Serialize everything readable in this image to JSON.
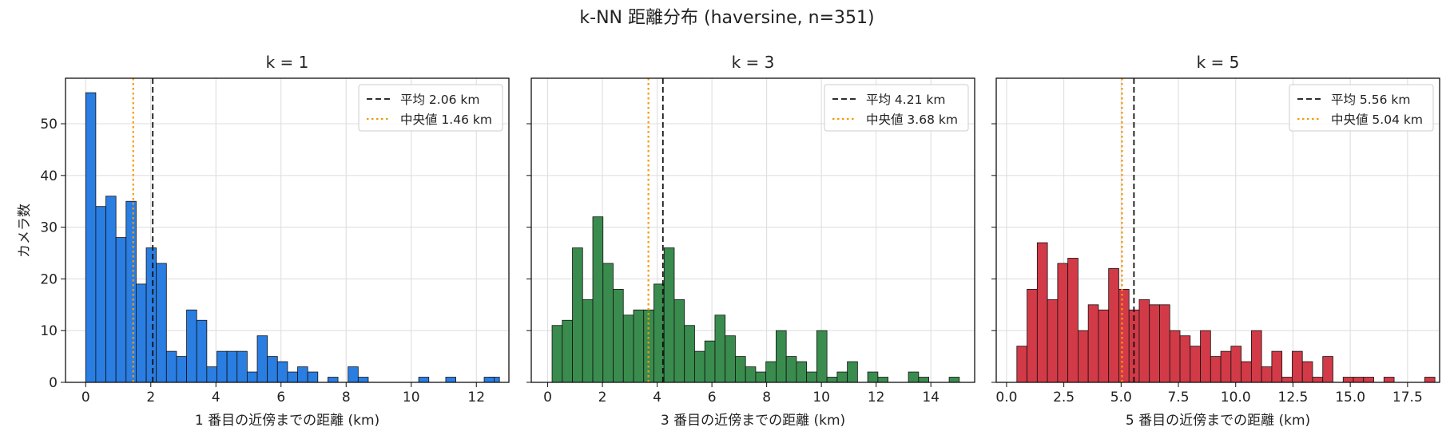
{
  "figure_title": "k-NN 距離分布 (haversine, n=351)",
  "y_label": "カメラ数",
  "chart_data": [
    {
      "type": "bar",
      "title": "k = 1",
      "xlabel": "1 番目の近傍までの距離 (km)",
      "ylabel": "カメラ数",
      "color": "#2a7de1",
      "xlim": [
        -0.62,
        13.0
      ],
      "ylim": [
        0,
        58.8
      ],
      "xticks": [
        0,
        2,
        4,
        6,
        8,
        10,
        12
      ],
      "xtick_labels": [
        "0",
        "2",
        "4",
        "6",
        "8",
        "10",
        "12"
      ],
      "yticks": [
        0,
        10,
        20,
        30,
        40,
        50
      ],
      "ytick_labels": [
        "0",
        "10",
        "20",
        "30",
        "40",
        "50"
      ],
      "bin_start": 0.0,
      "bin_width": 0.31,
      "counts": [
        56,
        34,
        36,
        28,
        35,
        19,
        26,
        23,
        6,
        5,
        14,
        12,
        3,
        6,
        6,
        6,
        2,
        9,
        5,
        4,
        2,
        3,
        2,
        0,
        1,
        0,
        3,
        1,
        0,
        0,
        0,
        0,
        0,
        1,
        0,
        0,
        0,
        0,
        0,
        0,
        1,
        0
      ],
      "extra_bars": [
        {
          "x": 11.06,
          "count": 1
        },
        {
          "x": 12.24,
          "count": 1
        }
      ],
      "mean": 2.06,
      "median": 1.46,
      "legend": {
        "mean_label": "平均 2.06 km",
        "median_label": "中央値 1.46 km",
        "position": "upper right"
      }
    },
    {
      "type": "bar",
      "title": "k = 3",
      "xlabel": "3 番目の近傍までの距離 (km)",
      "ylabel": "",
      "color": "#3a8c4e",
      "xlim": [
        -0.6,
        15.6
      ],
      "ylim": [
        0,
        58.8
      ],
      "xticks": [
        0,
        2,
        4,
        6,
        8,
        10,
        12,
        14
      ],
      "xtick_labels": [
        "0",
        "2",
        "4",
        "6",
        "8",
        "10",
        "12",
        "14"
      ],
      "yticks": [
        0,
        10,
        20,
        30,
        40,
        50
      ],
      "ytick_labels": [],
      "bin_start": 0.16,
      "bin_width": 0.372,
      "counts": [
        11,
        12,
        26,
        16,
        32,
        23,
        18,
        13,
        14,
        14,
        19,
        26,
        16,
        11,
        6,
        8,
        13,
        9,
        5,
        3,
        2,
        4,
        10,
        5,
        4,
        2,
        10,
        1,
        2,
        4,
        0,
        2,
        1,
        0,
        0,
        2,
        1,
        0,
        0,
        1
      ],
      "mean": 4.21,
      "median": 3.68,
      "legend": {
        "mean_label": "平均 4.21 km",
        "median_label": "中央値 3.68 km",
        "position": "upper right"
      }
    },
    {
      "type": "bar",
      "title": "k = 5",
      "xlabel": "5 番目の近傍までの距離 (km)",
      "ylabel": "",
      "color": "#d23a47",
      "xlim": [
        -0.45,
        18.9
      ],
      "ylim": [
        0,
        58.8
      ],
      "xticks": [
        0,
        2.5,
        5,
        7.5,
        10,
        12.5,
        15,
        17.5
      ],
      "xtick_labels": [
        "0.0",
        "2.5",
        "5.0",
        "7.5",
        "10.0",
        "12.5",
        "15.0",
        "17.5"
      ],
      "yticks": [
        0,
        10,
        20,
        30,
        40,
        50
      ],
      "ytick_labels": [],
      "bin_start": 0.45,
      "bin_width": 0.445,
      "counts": [
        7,
        18,
        27,
        16,
        23,
        24,
        10,
        15,
        14,
        22,
        18,
        14,
        16,
        15,
        15,
        10,
        9,
        7,
        10,
        5,
        6,
        7,
        4,
        10,
        3,
        6,
        1,
        6,
        4,
        1,
        5,
        0,
        1,
        1,
        1,
        0,
        1,
        0,
        0,
        0,
        1
      ],
      "mean": 5.56,
      "median": 5.04,
      "legend": {
        "mean_label": "平均 5.56 km",
        "median_label": "中央値 5.04 km",
        "position": "upper right"
      }
    }
  ]
}
